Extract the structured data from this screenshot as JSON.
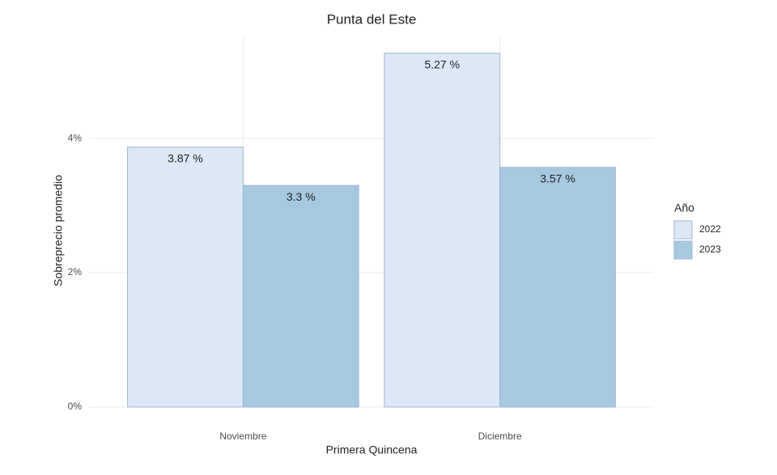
{
  "chart_data": {
    "type": "bar",
    "title": "Punta del Este",
    "x_label": "Primera Quincena",
    "y_label": "Sobreprecio promedio",
    "categories": [
      "Noviembre",
      "Diciembre"
    ],
    "legend_title": "Año",
    "series": [
      {
        "name": "2022",
        "color": "#dce8f5",
        "values": [
          3.87,
          5.27
        ],
        "value_labels": [
          "3.87 %",
          "5.27 %"
        ]
      },
      {
        "name": "2023",
        "color": "#a6c9e0",
        "values": [
          3.3,
          3.57
        ],
        "value_labels": [
          "3.3 %",
          "3.57 %"
        ]
      }
    ],
    "ylim": [
      0,
      5.52
    ],
    "yticks": [
      {
        "value": 0,
        "label": "0%"
      },
      {
        "value": 2,
        "label": "2%"
      },
      {
        "value": 4,
        "label": "4%"
      }
    ],
    "grid": true,
    "legend": "right"
  }
}
